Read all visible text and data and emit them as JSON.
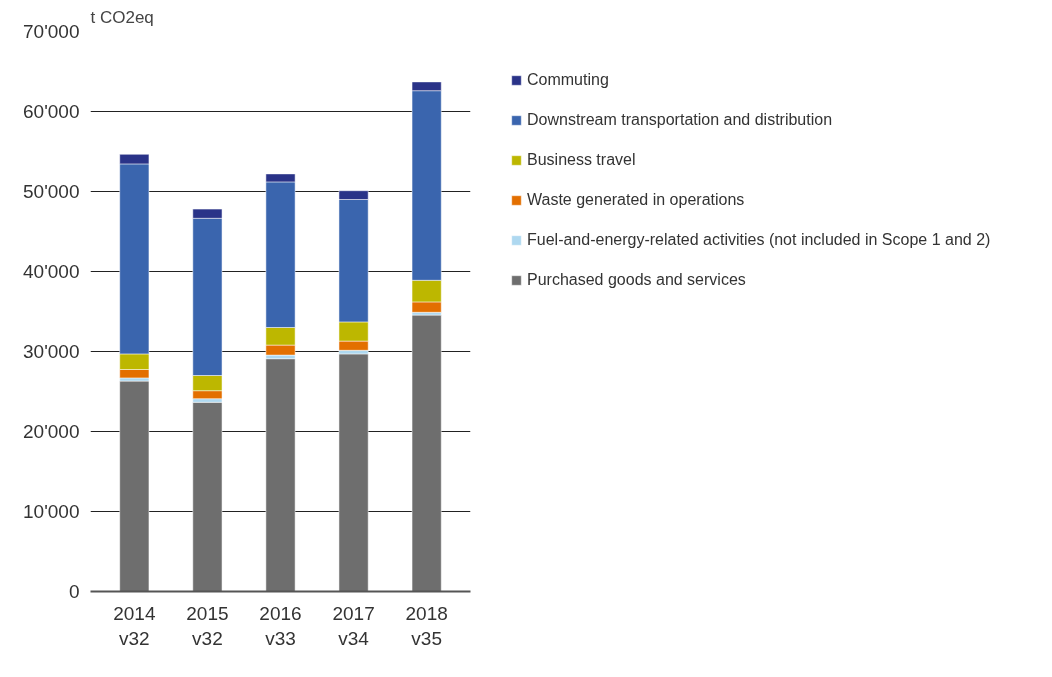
{
  "chart_data": {
    "type": "bar",
    "stacked": true,
    "ylabel": "t CO2eq",
    "categories": [
      "2014\nv32",
      "2015\nv32",
      "2016\nv33",
      "2017\nv34",
      "2018\nv35"
    ],
    "series": [
      {
        "name": "Purchased goods and services",
        "color": "#6e6e6e",
        "values": [
          26300,
          23650,
          29100,
          29700,
          34550
        ]
      },
      {
        "name": "Fuel-and-energy-related activities (not included in Scope 1 and 2)",
        "color": "#aed8f0",
        "values": [
          400,
          450,
          450,
          450,
          350
        ]
      },
      {
        "name": "Waste generated in operations",
        "color": "#e36f00",
        "values": [
          1050,
          1000,
          1250,
          1150,
          1300
        ]
      },
      {
        "name": "Business travel",
        "color": "#bdb700",
        "values": [
          1950,
          1900,
          2200,
          2400,
          2700
        ]
      },
      {
        "name": "Downstream transportation and distribution",
        "color": "#3a65ae",
        "values": [
          23750,
          19650,
          18200,
          15300,
          23700
        ]
      },
      {
        "name": "Commuting",
        "color": "#2a3388",
        "values": [
          1200,
          1150,
          1000,
          1100,
          1100
        ]
      }
    ],
    "ylim": [
      0,
      70000
    ],
    "yticks": [
      0,
      {
        "value": 10000,
        "label": "10'000"
      },
      {
        "value": 20000,
        "label": "20'000"
      },
      {
        "value": 30000,
        "label": "30'000"
      },
      {
        "value": 40000,
        "label": "40'000"
      },
      {
        "value": 50000,
        "label": "50'000"
      },
      {
        "value": 60000,
        "label": "60'000"
      },
      {
        "value": 70000,
        "label": "70'000"
      }
    ],
    "grid": "y",
    "legend": "right"
  }
}
